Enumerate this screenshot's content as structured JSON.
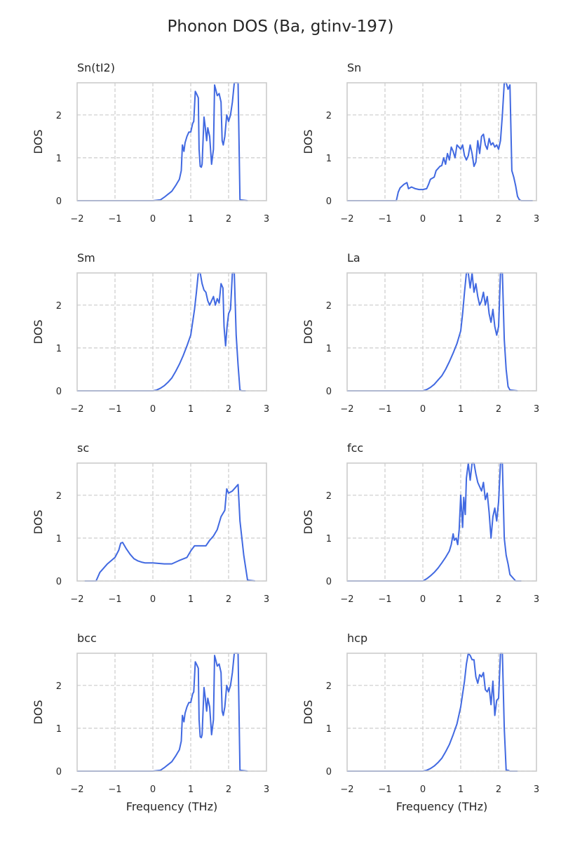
{
  "figure": {
    "title": "Phonon DOS (Ba, gtinv-197)"
  },
  "colors": {
    "line": "#4169e1"
  },
  "chart_data": [
    {
      "type": "line",
      "title": "Sn(tI2)",
      "xlabel": "",
      "ylabel": "DOS",
      "xlim": [
        -2,
        3
      ],
      "ylim": [
        0,
        2.75
      ],
      "xticks": [
        -2,
        -1,
        0,
        1,
        2,
        3
      ],
      "yticks": [
        0,
        1,
        2
      ],
      "grid": true,
      "x": [
        -2.0,
        0.0,
        0.2,
        0.3,
        0.4,
        0.5,
        0.6,
        0.7,
        0.75,
        0.78,
        0.82,
        0.85,
        0.9,
        0.95,
        1.0,
        1.05,
        1.08,
        1.12,
        1.15,
        1.2,
        1.22,
        1.25,
        1.28,
        1.3,
        1.35,
        1.38,
        1.42,
        1.45,
        1.5,
        1.55,
        1.6,
        1.63,
        1.66,
        1.7,
        1.75,
        1.8,
        1.83,
        1.86,
        1.9,
        1.95,
        2.0,
        2.05,
        2.1,
        2.15,
        2.2,
        2.22,
        2.25,
        2.3,
        2.5
      ],
      "values": [
        0,
        0,
        0.02,
        0.08,
        0.15,
        0.22,
        0.35,
        0.5,
        0.7,
        1.3,
        1.15,
        1.35,
        1.5,
        1.6,
        1.6,
        1.8,
        1.85,
        2.55,
        2.5,
        2.4,
        1.2,
        0.8,
        0.78,
        0.85,
        1.95,
        1.75,
        1.4,
        1.7,
        1.5,
        0.85,
        1.2,
        2.7,
        2.6,
        2.45,
        2.5,
        2.3,
        1.4,
        1.3,
        1.5,
        2.0,
        1.85,
        2.0,
        2.3,
        2.75,
        2.75,
        2.75,
        2.75,
        0.02,
        0
      ]
    },
    {
      "type": "line",
      "title": "Sn",
      "xlabel": "",
      "ylabel": "DOS",
      "xlim": [
        -2,
        3
      ],
      "ylim": [
        0,
        2.75
      ],
      "xticks": [
        -2,
        -1,
        0,
        1,
        2,
        3
      ],
      "yticks": [
        0,
        1,
        2
      ],
      "grid": true,
      "x": [
        -2.0,
        -1.0,
        -0.7,
        -0.65,
        -0.6,
        -0.5,
        -0.42,
        -0.38,
        -0.3,
        -0.2,
        -0.1,
        0.0,
        0.1,
        0.15,
        0.2,
        0.3,
        0.35,
        0.4,
        0.45,
        0.5,
        0.55,
        0.6,
        0.65,
        0.7,
        0.75,
        0.8,
        0.85,
        0.9,
        0.95,
        1.0,
        1.05,
        1.1,
        1.15,
        1.2,
        1.25,
        1.3,
        1.35,
        1.4,
        1.45,
        1.5,
        1.55,
        1.6,
        1.65,
        1.7,
        1.75,
        1.8,
        1.85,
        1.9,
        1.95,
        2.0,
        2.05,
        2.1,
        2.15,
        2.2,
        2.25,
        2.3,
        2.35,
        2.4,
        2.45,
        2.5,
        2.55,
        2.6,
        2.9
      ],
      "values": [
        0,
        0,
        0,
        0.2,
        0.3,
        0.38,
        0.42,
        0.28,
        0.32,
        0.28,
        0.26,
        0.26,
        0.28,
        0.38,
        0.5,
        0.55,
        0.7,
        0.75,
        0.8,
        0.82,
        1.0,
        0.85,
        1.1,
        0.95,
        1.25,
        1.15,
        1.0,
        1.3,
        1.25,
        1.2,
        1.3,
        1.05,
        0.95,
        1.05,
        1.3,
        1.1,
        0.8,
        0.9,
        1.4,
        1.1,
        1.5,
        1.55,
        1.3,
        1.2,
        1.45,
        1.3,
        1.35,
        1.25,
        1.3,
        1.2,
        1.4,
        2.0,
        2.75,
        2.75,
        2.6,
        2.7,
        0.7,
        0.55,
        0.35,
        0.1,
        0.02,
        0,
        0
      ]
    },
    {
      "type": "line",
      "title": "Sm",
      "xlabel": "",
      "ylabel": "DOS",
      "xlim": [
        -2,
        3
      ],
      "ylim": [
        0,
        2.75
      ],
      "xticks": [
        -2,
        -1,
        0,
        1,
        2,
        3
      ],
      "yticks": [
        0,
        1,
        2
      ],
      "grid": true,
      "x": [
        -2.0,
        -0.1,
        0.0,
        0.1,
        0.2,
        0.3,
        0.4,
        0.5,
        0.6,
        0.7,
        0.8,
        0.9,
        1.0,
        1.05,
        1.1,
        1.15,
        1.2,
        1.25,
        1.3,
        1.35,
        1.4,
        1.45,
        1.5,
        1.55,
        1.6,
        1.65,
        1.7,
        1.75,
        1.8,
        1.85,
        1.88,
        1.92,
        1.96,
        2.0,
        2.05,
        2.1,
        2.15,
        2.2,
        2.25,
        2.3,
        2.35,
        2.45
      ],
      "values": [
        0,
        0,
        0,
        0.02,
        0.06,
        0.12,
        0.2,
        0.3,
        0.45,
        0.62,
        0.82,
        1.05,
        1.3,
        1.6,
        1.9,
        2.3,
        2.75,
        2.75,
        2.5,
        2.35,
        2.3,
        2.1,
        2.0,
        2.1,
        2.2,
        2.0,
        2.15,
        2.05,
        2.5,
        2.4,
        1.5,
        1.05,
        1.5,
        1.8,
        1.9,
        2.75,
        2.75,
        1.3,
        0.6,
        0.02,
        0,
        0
      ]
    },
    {
      "type": "line",
      "title": "La",
      "xlabel": "",
      "ylabel": "DOS",
      "xlim": [
        -2,
        3
      ],
      "ylim": [
        0,
        2.75
      ],
      "xticks": [
        -2,
        -1,
        0,
        1,
        2,
        3
      ],
      "yticks": [
        0,
        1,
        2
      ],
      "grid": true,
      "x": [
        -2.0,
        -0.1,
        0.0,
        0.1,
        0.2,
        0.3,
        0.4,
        0.5,
        0.6,
        0.7,
        0.8,
        0.9,
        1.0,
        1.05,
        1.1,
        1.15,
        1.2,
        1.25,
        1.3,
        1.35,
        1.4,
        1.45,
        1.5,
        1.55,
        1.6,
        1.65,
        1.7,
        1.75,
        1.8,
        1.85,
        1.9,
        1.95,
        2.0,
        2.05,
        2.1,
        2.15,
        2.2,
        2.25,
        2.3,
        2.5
      ],
      "values": [
        0,
        0,
        0,
        0.03,
        0.08,
        0.15,
        0.25,
        0.35,
        0.5,
        0.68,
        0.88,
        1.1,
        1.4,
        1.8,
        2.3,
        2.75,
        2.75,
        2.4,
        2.75,
        2.3,
        2.5,
        2.2,
        2.0,
        2.1,
        2.3,
        2.0,
        2.2,
        1.8,
        1.6,
        1.9,
        1.5,
        1.3,
        1.5,
        2.75,
        2.75,
        1.2,
        0.5,
        0.1,
        0.02,
        0
      ]
    },
    {
      "type": "line",
      "title": "sc",
      "xlabel": "",
      "ylabel": "DOS",
      "xlim": [
        -2,
        3
      ],
      "ylim": [
        0,
        2.75
      ],
      "xticks": [
        -2,
        -1,
        0,
        1,
        2,
        3
      ],
      "yticks": [
        0,
        1,
        2
      ],
      "grid": true,
      "x": [
        -1.8,
        -1.5,
        -1.4,
        -1.2,
        -1.0,
        -0.9,
        -0.85,
        -0.8,
        -0.7,
        -0.6,
        -0.5,
        -0.4,
        -0.3,
        -0.2,
        0.0,
        0.3,
        0.5,
        0.7,
        0.9,
        1.0,
        1.1,
        1.2,
        1.4,
        1.5,
        1.6,
        1.7,
        1.8,
        1.9,
        1.95,
        2.0,
        2.1,
        2.2,
        2.25,
        2.3,
        2.4,
        2.5,
        2.7
      ],
      "values": [
        0,
        0,
        0.2,
        0.4,
        0.55,
        0.72,
        0.88,
        0.9,
        0.75,
        0.62,
        0.52,
        0.47,
        0.44,
        0.42,
        0.42,
        0.4,
        0.4,
        0.48,
        0.55,
        0.7,
        0.82,
        0.82,
        0.82,
        0.95,
        1.05,
        1.2,
        1.5,
        1.65,
        2.15,
        2.05,
        2.1,
        2.2,
        2.25,
        1.4,
        0.6,
        0.02,
        0
      ]
    },
    {
      "type": "line",
      "title": "fcc",
      "xlabel": "",
      "ylabel": "DOS",
      "xlim": [
        -2,
        3
      ],
      "ylim": [
        0,
        2.75
      ],
      "xticks": [
        -2,
        -1,
        0,
        1,
        2,
        3
      ],
      "yticks": [
        0,
        1,
        2
      ],
      "grid": true,
      "x": [
        -2.0,
        0.0,
        0.1,
        0.2,
        0.3,
        0.4,
        0.5,
        0.6,
        0.7,
        0.75,
        0.8,
        0.83,
        0.88,
        0.92,
        0.96,
        1.0,
        1.02,
        1.05,
        1.08,
        1.12,
        1.15,
        1.2,
        1.25,
        1.3,
        1.35,
        1.4,
        1.45,
        1.5,
        1.55,
        1.6,
        1.65,
        1.7,
        1.75,
        1.8,
        1.85,
        1.9,
        1.95,
        2.0,
        2.05,
        2.1,
        2.15,
        2.2,
        2.25,
        2.3,
        2.45,
        2.6
      ],
      "values": [
        0,
        0,
        0.05,
        0.12,
        0.2,
        0.3,
        0.42,
        0.55,
        0.7,
        0.85,
        1.1,
        0.95,
        1.0,
        0.85,
        1.2,
        2.0,
        1.7,
        1.25,
        1.95,
        1.55,
        2.4,
        2.75,
        2.35,
        2.75,
        2.75,
        2.5,
        2.3,
        2.2,
        2.1,
        2.3,
        1.9,
        2.05,
        1.6,
        1.0,
        1.5,
        1.7,
        1.4,
        1.85,
        2.75,
        2.75,
        1.0,
        0.6,
        0.4,
        0.15,
        0,
        0
      ]
    },
    {
      "type": "line",
      "title": "bcc",
      "xlabel": "Frequency (THz)",
      "ylabel": "DOS",
      "xlim": [
        -2,
        3
      ],
      "ylim": [
        0,
        2.75
      ],
      "xticks": [
        -2,
        -1,
        0,
        1,
        2,
        3
      ],
      "yticks": [
        0,
        1,
        2
      ],
      "grid": true,
      "x": [
        -2.0,
        0.0,
        0.2,
        0.3,
        0.4,
        0.5,
        0.6,
        0.7,
        0.75,
        0.78,
        0.82,
        0.85,
        0.9,
        0.95,
        1.0,
        1.05,
        1.08,
        1.12,
        1.15,
        1.2,
        1.22,
        1.25,
        1.28,
        1.3,
        1.35,
        1.38,
        1.42,
        1.45,
        1.5,
        1.55,
        1.6,
        1.63,
        1.66,
        1.7,
        1.75,
        1.8,
        1.83,
        1.86,
        1.9,
        1.95,
        2.0,
        2.05,
        2.1,
        2.15,
        2.2,
        2.22,
        2.25,
        2.3,
        2.5
      ],
      "values": [
        0,
        0,
        0.02,
        0.08,
        0.15,
        0.22,
        0.35,
        0.5,
        0.7,
        1.3,
        1.15,
        1.35,
        1.5,
        1.6,
        1.6,
        1.8,
        1.85,
        2.55,
        2.5,
        2.4,
        1.2,
        0.8,
        0.78,
        0.85,
        1.95,
        1.75,
        1.4,
        1.7,
        1.5,
        0.85,
        1.2,
        2.7,
        2.6,
        2.45,
        2.5,
        2.3,
        1.4,
        1.3,
        1.5,
        2.0,
        1.85,
        2.0,
        2.3,
        2.75,
        2.75,
        2.75,
        2.75,
        0.02,
        0
      ]
    },
    {
      "type": "line",
      "title": "hcp",
      "xlabel": "Frequency (THz)",
      "ylabel": "DOS",
      "xlim": [
        -2,
        3
      ],
      "ylim": [
        0,
        2.75
      ],
      "xticks": [
        -2,
        -1,
        0,
        1,
        2,
        3
      ],
      "yticks": [
        0,
        1,
        2
      ],
      "grid": true,
      "x": [
        -2.0,
        -0.1,
        0.0,
        0.1,
        0.2,
        0.3,
        0.4,
        0.5,
        0.6,
        0.7,
        0.8,
        0.9,
        1.0,
        1.05,
        1.1,
        1.15,
        1.2,
        1.25,
        1.3,
        1.35,
        1.4,
        1.45,
        1.5,
        1.55,
        1.6,
        1.65,
        1.7,
        1.75,
        1.8,
        1.85,
        1.9,
        1.95,
        2.0,
        2.05,
        2.1,
        2.15,
        2.2,
        2.25,
        2.3,
        2.5
      ],
      "values": [
        0,
        0,
        0,
        0.02,
        0.06,
        0.12,
        0.2,
        0.3,
        0.45,
        0.62,
        0.85,
        1.1,
        1.5,
        1.8,
        2.1,
        2.5,
        2.75,
        2.7,
        2.6,
        2.6,
        2.2,
        2.05,
        2.25,
        2.2,
        2.3,
        1.9,
        1.85,
        1.95,
        1.55,
        2.1,
        1.3,
        1.65,
        1.7,
        2.75,
        2.75,
        1.0,
        0.02,
        0.02,
        0,
        0
      ]
    }
  ]
}
